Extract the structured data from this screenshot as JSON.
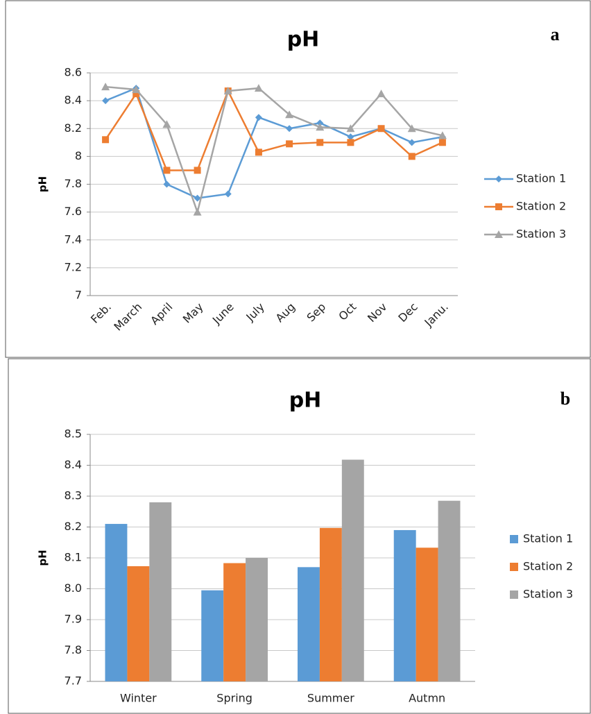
{
  "chart_data": [
    {
      "type": "line",
      "title": "pH",
      "panel_label": "a",
      "y_label": "pH",
      "categories": [
        "Feb.",
        "March",
        "April",
        "May",
        "June",
        "July",
        "Aug",
        "Sep",
        "Oct",
        "Nov",
        "Dec",
        "Janu."
      ],
      "series": [
        {
          "name": "Station 1",
          "color": "#5b9bd5",
          "marker": "diamond",
          "values": [
            8.4,
            8.49,
            7.8,
            7.7,
            7.73,
            8.28,
            8.2,
            8.24,
            8.14,
            8.2,
            8.1,
            8.14
          ]
        },
        {
          "name": "Station 2",
          "color": "#ed7d31",
          "marker": "square",
          "values": [
            8.12,
            8.45,
            7.9,
            7.9,
            8.47,
            8.03,
            8.09,
            8.1,
            8.1,
            8.2,
            8.0,
            8.1
          ]
        },
        {
          "name": "Station 3",
          "color": "#a5a5a5",
          "marker": "triangle",
          "values": [
            8.5,
            8.48,
            8.23,
            7.6,
            8.47,
            8.49,
            8.3,
            8.21,
            8.2,
            8.45,
            8.2,
            8.15
          ]
        }
      ],
      "ylim": [
        7,
        8.6
      ],
      "yticks": [
        7,
        7.2,
        7.4,
        7.6,
        7.8,
        8,
        8.2,
        8.4,
        8.6
      ],
      "grid": true,
      "legend": "right"
    },
    {
      "type": "bar",
      "title": "pH",
      "panel_label": "b",
      "y_label": "pH",
      "categories": [
        "Winter",
        "Spring",
        "Summer",
        "Autmn"
      ],
      "series": [
        {
          "name": "Station 1",
          "color": "#5b9bd5",
          "values": [
            8.21,
            7.995,
            8.07,
            8.19
          ]
        },
        {
          "name": "Station 2",
          "color": "#ed7d31",
          "values": [
            8.073,
            8.083,
            8.197,
            8.133
          ]
        },
        {
          "name": "Station 3",
          "color": "#a5a5a5",
          "values": [
            8.28,
            8.1,
            8.418,
            8.285
          ]
        }
      ],
      "ylim": [
        7.7,
        8.5
      ],
      "yticks": [
        7.7,
        7.8,
        7.9,
        {
          "value": 8,
          "label": "8.0"
        },
        8.1,
        8.2,
        8.3,
        8.4,
        8.5
      ],
      "grid": true,
      "legend": "right"
    }
  ]
}
